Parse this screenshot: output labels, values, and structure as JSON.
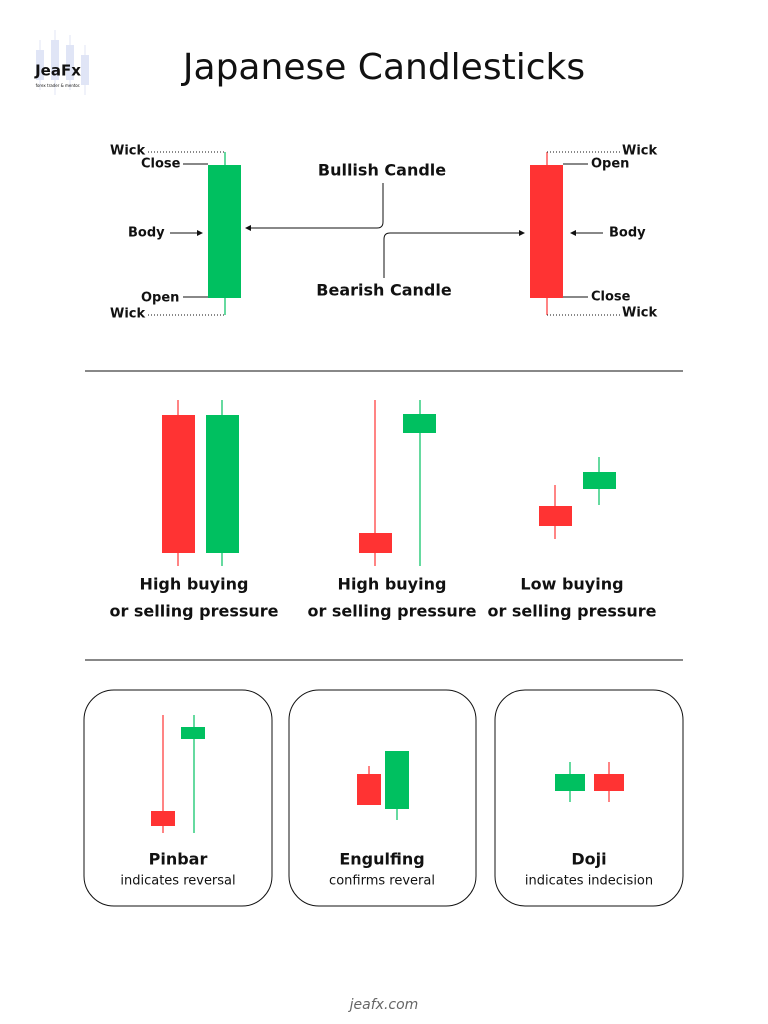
{
  "logo": {
    "name": "JeaFx",
    "tagline": "forex trader & mentor."
  },
  "title": "Japanese Candlesticks",
  "anatomy": {
    "bullish": {
      "label": "Bullish Candle",
      "wick_top": "Wick",
      "close": "Close",
      "body": "Body",
      "open": "Open",
      "wick_bottom": "Wick"
    },
    "bearish": {
      "label": "Bearish Candle",
      "wick_top": "Wick",
      "open": "Open",
      "body": "Body",
      "close": "Close",
      "wick_bottom": "Wick"
    }
  },
  "pressure": [
    {
      "lines": [
        "High buying",
        "or selling pressure"
      ]
    },
    {
      "lines": [
        "High buying",
        "or selling pressure"
      ]
    },
    {
      "lines": [
        "Low buying",
        "or selling pressure"
      ]
    }
  ],
  "patterns": [
    {
      "title": "Pinbar",
      "subtitle": "indicates reversal"
    },
    {
      "title": "Engulfing",
      "subtitle": "confirms reveral"
    },
    {
      "title": "Doji",
      "subtitle": "indicates indecision"
    }
  ],
  "footer": "jeafx.com"
}
